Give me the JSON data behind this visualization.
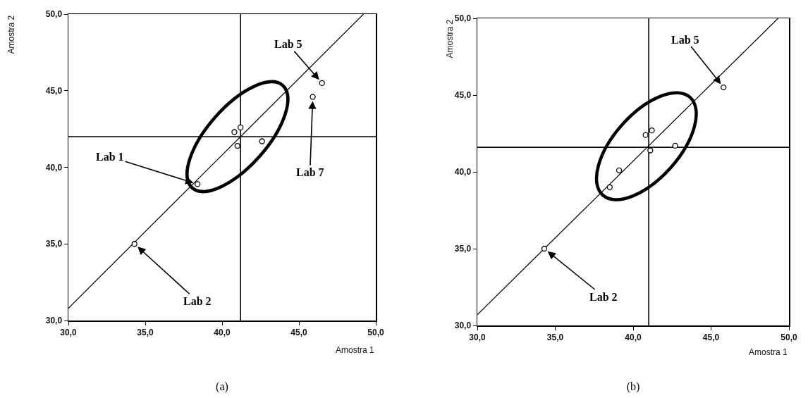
{
  "chart_data": [
    {
      "type": "scatter",
      "title": "(a)",
      "xlabel": "Amostra 1",
      "ylabel": "Amostra 2",
      "marker": "circle",
      "xlim": [
        30,
        50
      ],
      "ylim": [
        30,
        50
      ],
      "xticks": [
        {
          "value": 30,
          "label": "30,0"
        },
        {
          "value": 35,
          "label": "35,0"
        },
        {
          "value": 40,
          "label": "40,0"
        },
        {
          "value": 45,
          "label": "45,0"
        },
        {
          "value": 50,
          "label": "50,0"
        }
      ],
      "yticks": [
        {
          "value": 30,
          "label": "30,0"
        },
        {
          "value": 35,
          "label": "35,0"
        },
        {
          "value": 40,
          "label": "40,0"
        },
        {
          "value": 45,
          "label": "45,0"
        },
        {
          "value": 50,
          "label": "50,0"
        }
      ],
      "ref_lines": [
        {
          "axis": "x",
          "value": 41.2,
          "color": "#000000"
        },
        {
          "axis": "y",
          "value": 42.0,
          "color": "#000000"
        }
      ],
      "series": [
        {
          "type": "line",
          "marker": "none",
          "color": "#000000",
          "x": [
            30,
            49.2
          ],
          "values": [
            30.8,
            50
          ]
        },
        {
          "color": "#000000",
          "x": [
            34.3,
            38.4,
            40.8,
            41.2,
            41.0,
            42.6,
            45.9,
            46.5
          ],
          "values": [
            35.0,
            38.9,
            42.3,
            42.6,
            41.4,
            41.7,
            44.6,
            45.5
          ]
        }
      ],
      "annotations": [
        {
          "text": "Lab 5",
          "x": 46.5,
          "y": 45.5
        },
        {
          "text": "Lab 1",
          "x": 38.4,
          "y": 38.9
        },
        {
          "text": "Lab 7",
          "x": 45.9,
          "y": 44.6
        },
        {
          "text": "Lab 2",
          "x": 34.3,
          "y": 35.0
        }
      ]
    },
    {
      "type": "scatter",
      "title": "(b)",
      "xlabel": "Amostra 1",
      "ylabel": "Amostra 2",
      "marker": "circle",
      "xlim": [
        30,
        50
      ],
      "ylim": [
        30,
        50
      ],
      "xticks": [
        {
          "value": 30,
          "label": "30,0"
        },
        {
          "value": 35,
          "label": "35,0"
        },
        {
          "value": 40,
          "label": "40,0"
        },
        {
          "value": 45,
          "label": "45,0"
        },
        {
          "value": 50,
          "label": "50,0"
        }
      ],
      "yticks": [
        {
          "value": 30,
          "label": "30,0"
        },
        {
          "value": 35,
          "label": "35,0"
        },
        {
          "value": 40,
          "label": "40,0"
        },
        {
          "value": 45,
          "label": "45,0"
        },
        {
          "value": 50,
          "label": "50,0"
        }
      ],
      "ref_lines": [
        {
          "axis": "x",
          "value": 41.0,
          "color": "#000000"
        },
        {
          "axis": "y",
          "value": 41.6,
          "color": "#000000"
        }
      ],
      "series": [
        {
          "type": "line",
          "marker": "none",
          "color": "#000000",
          "x": [
            30,
            49.3
          ],
          "values": [
            30.7,
            50
          ]
        },
        {
          "color": "#000000",
          "x": [
            34.3,
            38.5,
            39.1,
            40.8,
            41.2,
            41.1,
            42.7,
            45.8
          ],
          "values": [
            35.0,
            39.0,
            40.1,
            42.4,
            42.7,
            41.4,
            41.7,
            45.5
          ]
        }
      ],
      "annotations": [
        {
          "text": "Lab 5",
          "x": 45.8,
          "y": 45.5
        },
        {
          "text": "Lab 2",
          "x": 34.3,
          "y": 35.0
        }
      ]
    }
  ]
}
